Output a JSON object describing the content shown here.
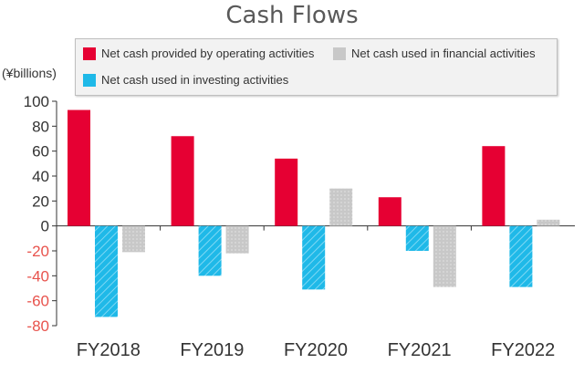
{
  "chart_data": {
    "type": "bar",
    "title": "Cash Flows",
    "ylabel": "(¥billions)",
    "xlabel": "",
    "categories": [
      "FY2018",
      "FY2019",
      "FY2020",
      "FY2021",
      "FY2022"
    ],
    "series": [
      {
        "name": "Net cash provided by operating activities",
        "values": [
          93,
          72,
          54,
          23,
          64
        ],
        "color": "#e60033"
      },
      {
        "name": "Net cash used in investing activities",
        "values": [
          -73,
          -40,
          -51,
          -20,
          -49
        ],
        "color": "#1fb9e8",
        "pattern": "diagonal-hatch"
      },
      {
        "name": "Net cash used in financial activities",
        "values": [
          -21,
          -22,
          30,
          -49,
          5
        ],
        "color": "#c8c8c8",
        "pattern": "dotted"
      }
    ],
    "ylim": [
      -80,
      100
    ],
    "yticks": [
      100,
      80,
      60,
      40,
      20,
      0,
      -20,
      -40,
      -60,
      -80
    ],
    "negative_tick_color": "#e8534d",
    "grid": false,
    "legend": "top"
  }
}
